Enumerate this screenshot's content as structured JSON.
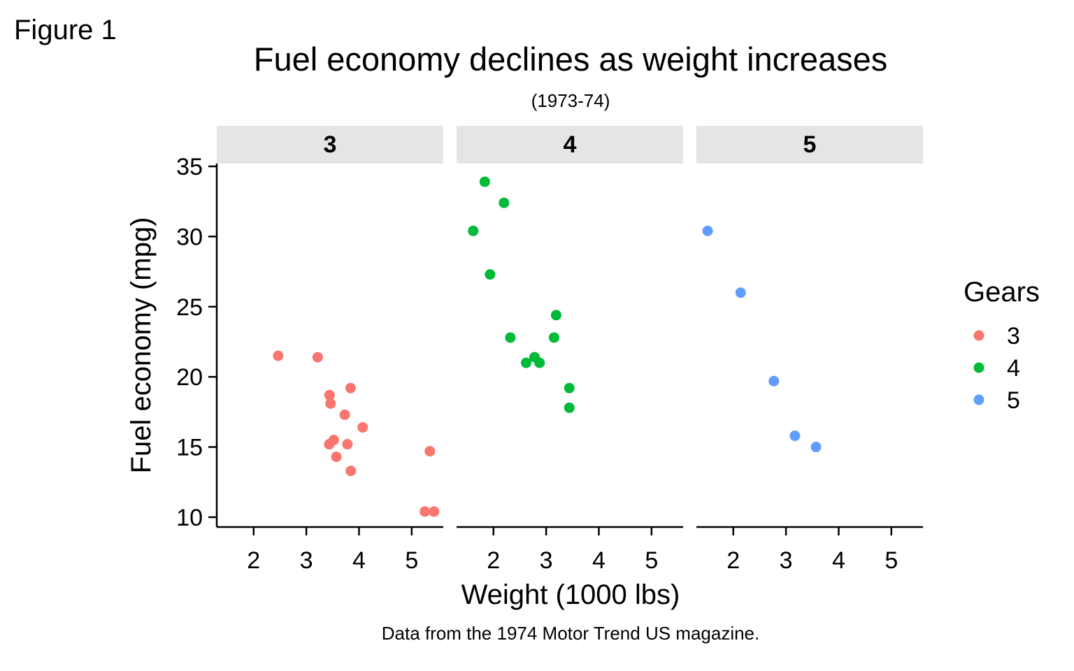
{
  "figure_label": "Figure 1",
  "chart_data": {
    "type": "scatter",
    "title": "Fuel economy declines as weight increases",
    "subtitle": "(1973-74)",
    "xlabel": "Weight (1000 lbs)",
    "ylabel": "Fuel economy (mpg)",
    "caption": "Data from the 1974 Motor Trend US magazine.",
    "xlim": [
      1.3,
      5.6
    ],
    "ylim": [
      9.3,
      35.2
    ],
    "x_ticks": [
      2,
      3,
      4,
      5
    ],
    "y_ticks": [
      10,
      15,
      20,
      25,
      30,
      35
    ],
    "x_tick_labels": [
      "2",
      "3",
      "4",
      "5"
    ],
    "y_tick_labels": [
      "10",
      "15",
      "20",
      "25",
      "30",
      "35"
    ],
    "grid": false,
    "legend": {
      "title": "Gears",
      "position": "right",
      "entries": [
        {
          "label": "3",
          "color": "#F8766D"
        },
        {
          "label": "4",
          "color": "#00BA38"
        },
        {
          "label": "5",
          "color": "#619CFF"
        }
      ]
    },
    "facets": [
      {
        "label": "3",
        "color": "#F8766D",
        "points": [
          {
            "x": 2.465,
            "y": 21.5
          },
          {
            "x": 3.215,
            "y": 21.4
          },
          {
            "x": 3.44,
            "y": 18.7
          },
          {
            "x": 3.46,
            "y": 18.1
          },
          {
            "x": 3.57,
            "y": 14.3
          },
          {
            "x": 3.73,
            "y": 17.3
          },
          {
            "x": 3.78,
            "y": 15.2
          },
          {
            "x": 3.84,
            "y": 19.2
          },
          {
            "x": 3.845,
            "y": 13.3
          },
          {
            "x": 4.07,
            "y": 16.4
          },
          {
            "x": 3.435,
            "y": 15.2
          },
          {
            "x": 3.52,
            "y": 15.5
          },
          {
            "x": 5.25,
            "y": 10.4
          },
          {
            "x": 5.424,
            "y": 10.4
          },
          {
            "x": 5.345,
            "y": 14.7
          }
        ]
      },
      {
        "label": "4",
        "color": "#00BA38",
        "points": [
          {
            "x": 1.835,
            "y": 33.9
          },
          {
            "x": 2.2,
            "y": 32.4
          },
          {
            "x": 1.615,
            "y": 30.4
          },
          {
            "x": 1.935,
            "y": 27.3
          },
          {
            "x": 3.19,
            "y": 24.4
          },
          {
            "x": 2.32,
            "y": 22.8
          },
          {
            "x": 3.15,
            "y": 22.8
          },
          {
            "x": 2.78,
            "y": 21.4
          },
          {
            "x": 2.62,
            "y": 21.0
          },
          {
            "x": 2.875,
            "y": 21.0
          },
          {
            "x": 3.44,
            "y": 19.2
          },
          {
            "x": 3.44,
            "y": 17.8
          }
        ]
      },
      {
        "label": "5",
        "color": "#619CFF",
        "points": [
          {
            "x": 1.513,
            "y": 30.4
          },
          {
            "x": 2.14,
            "y": 26.0
          },
          {
            "x": 2.77,
            "y": 19.7
          },
          {
            "x": 3.17,
            "y": 15.8
          },
          {
            "x": 3.57,
            "y": 15.0
          }
        ]
      }
    ]
  }
}
